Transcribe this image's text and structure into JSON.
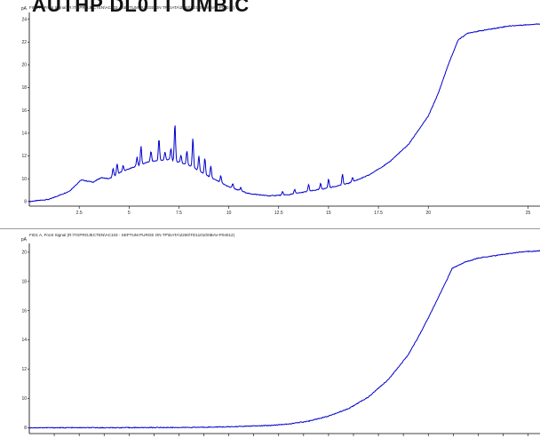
{
  "page": {
    "title": "AUTHP DL0TT UMBIC"
  },
  "chart_data": [
    {
      "type": "line",
      "signal_label": "FID1 A, Front Signal (R:\\TGPROJECTEN\\AC103 - SEPTUM PURGE ON TP\\DATA\\2260\\TD11010\\0BAV-P04012)",
      "ylabel": "pA",
      "xlim": [
        0,
        25.6
      ],
      "ylim": [
        7.6,
        24.6
      ],
      "x_ticks": [
        2.5,
        5,
        7.5,
        10,
        12.5,
        15,
        17.5,
        20,
        25
      ],
      "x_tick_labels": [
        "2.5",
        "5",
        "7.5",
        "10",
        "12.5",
        "15",
        "17.5",
        "20",
        "25"
      ],
      "y_ticks": [
        8,
        10,
        12,
        14,
        16,
        18,
        20,
        22,
        24
      ],
      "y_tick_labels": [
        "8",
        "10",
        "12",
        "14",
        "16",
        "18",
        "20",
        "22",
        "24"
      ],
      "baseline": [
        [
          0.0,
          8.0
        ],
        [
          1.0,
          8.2
        ],
        [
          2.0,
          8.9
        ],
        [
          2.6,
          9.9
        ],
        [
          3.2,
          9.7
        ],
        [
          3.6,
          10.1
        ],
        [
          4.0,
          10.0
        ],
        [
          4.6,
          10.6
        ],
        [
          5.2,
          11.0
        ],
        [
          6.0,
          11.5
        ],
        [
          7.0,
          11.7
        ],
        [
          8.0,
          11.2
        ],
        [
          9.0,
          10.2
        ],
        [
          10.0,
          9.3
        ],
        [
          11.0,
          8.7
        ],
        [
          12.0,
          8.5
        ],
        [
          13.0,
          8.6
        ],
        [
          14.0,
          8.9
        ],
        [
          15.0,
          9.2
        ],
        [
          16.0,
          9.6
        ],
        [
          17.0,
          10.3
        ],
        [
          18.0,
          11.4
        ],
        [
          19.0,
          13.0
        ],
        [
          20.0,
          15.5
        ],
        [
          20.5,
          17.5
        ],
        [
          21.0,
          20.0
        ],
        [
          21.5,
          22.2
        ],
        [
          22.0,
          22.8
        ],
        [
          23.0,
          23.1
        ],
        [
          24.0,
          23.4
        ],
        [
          25.6,
          23.6
        ]
      ],
      "peaks": [
        [
          4.2,
          0.7
        ],
        [
          4.4,
          0.9
        ],
        [
          4.7,
          0.5
        ],
        [
          5.4,
          0.8
        ],
        [
          5.6,
          1.6
        ],
        [
          6.1,
          0.9
        ],
        [
          6.5,
          1.9
        ],
        [
          6.8,
          0.7
        ],
        [
          7.1,
          1.0
        ],
        [
          7.3,
          3.3
        ],
        [
          7.6,
          0.7
        ],
        [
          7.9,
          1.2
        ],
        [
          8.2,
          2.6
        ],
        [
          8.5,
          1.3
        ],
        [
          8.8,
          1.4
        ],
        [
          9.1,
          1.0
        ],
        [
          9.6,
          0.6
        ],
        [
          10.2,
          0.4
        ],
        [
          10.6,
          0.3
        ],
        [
          12.7,
          0.3
        ],
        [
          13.3,
          0.4
        ],
        [
          14.0,
          0.6
        ],
        [
          14.6,
          0.5
        ],
        [
          15.0,
          0.8
        ],
        [
          15.7,
          0.9
        ],
        [
          16.2,
          0.4
        ]
      ]
    },
    {
      "type": "line",
      "signal_label": "FID1 A, Front Signal (R:\\TGPROJECTEN\\AC103 - SEPTUM PURGE ON TP\\DATA\\2260\\TD11010\\0BAV-P04012)",
      "ylabel": "pA",
      "xlim": [
        0,
        25.6
      ],
      "ylim": [
        7.6,
        20.6
      ],
      "x_ticks": [
        1.25,
        2.5,
        3.75,
        5,
        6.25,
        7.5,
        8.75,
        10,
        11.25,
        12.5,
        13.75,
        15,
        16.25,
        17.5,
        18.75,
        20,
        21.25,
        22.5,
        23.75,
        25
      ],
      "y_ticks": [
        8,
        10,
        12,
        14,
        16,
        18,
        20
      ],
      "y_tick_labels": [
        "8",
        "10",
        "12",
        "14",
        "16",
        "18",
        "20"
      ],
      "baseline": [
        [
          0.0,
          8.0
        ],
        [
          4.0,
          8.0
        ],
        [
          8.0,
          8.02
        ],
        [
          10.0,
          8.06
        ],
        [
          12.0,
          8.15
        ],
        [
          13.0,
          8.25
        ],
        [
          14.0,
          8.45
        ],
        [
          15.0,
          8.8
        ],
        [
          16.0,
          9.3
        ],
        [
          17.0,
          10.1
        ],
        [
          18.0,
          11.3
        ],
        [
          19.0,
          13.0
        ],
        [
          19.5,
          14.2
        ],
        [
          20.0,
          15.5
        ],
        [
          20.5,
          16.9
        ],
        [
          21.0,
          18.3
        ],
        [
          21.2,
          18.9
        ],
        [
          21.8,
          19.3
        ],
        [
          22.5,
          19.6
        ],
        [
          23.5,
          19.8
        ],
        [
          24.5,
          20.0
        ],
        [
          25.6,
          20.1
        ]
      ],
      "peaks": []
    }
  ]
}
